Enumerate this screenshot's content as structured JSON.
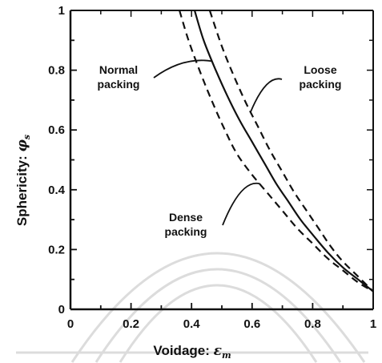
{
  "chart_data": {
    "type": "line",
    "title": "",
    "xlabel": "Voidage: ",
    "xlabel_symbol": "ε",
    "xlabel_sub": "m",
    "ylabel": "Sphericity: ",
    "ylabel_symbol": "φ",
    "ylabel_sub": "s",
    "xlim": [
      0,
      1
    ],
    "ylim": [
      0,
      1
    ],
    "x_ticks": [
      "0",
      "0.2",
      "0.4",
      "0.6",
      "0.8",
      "1"
    ],
    "y_ticks": [
      "0",
      "0.2",
      "0.4",
      "0.6",
      "0.8",
      "1"
    ],
    "grid": false,
    "series": [
      {
        "name": "Normal packing",
        "style": "solid",
        "x": [
          0.41,
          0.44,
          0.48,
          0.52,
          0.56,
          0.6,
          0.64,
          0.68,
          0.72,
          0.76,
          0.8,
          0.85,
          0.9,
          0.95,
          1.0
        ],
        "y": [
          1.0,
          0.9,
          0.8,
          0.71,
          0.63,
          0.56,
          0.49,
          0.42,
          0.36,
          0.3,
          0.25,
          0.19,
          0.14,
          0.1,
          0.06
        ]
      },
      {
        "name": "Loose packing",
        "style": "dashed",
        "x": [
          0.46,
          0.5,
          0.54,
          0.58,
          0.62,
          0.66,
          0.7,
          0.74,
          0.78,
          0.82,
          0.86,
          0.9,
          0.95,
          1.0
        ],
        "y": [
          1.0,
          0.88,
          0.78,
          0.69,
          0.61,
          0.53,
          0.46,
          0.39,
          0.33,
          0.27,
          0.21,
          0.16,
          0.11,
          0.06
        ]
      },
      {
        "name": "Dense packing",
        "style": "dashed",
        "x": [
          0.36,
          0.39,
          0.43,
          0.47,
          0.51,
          0.55,
          0.6,
          0.65,
          0.7,
          0.75,
          0.8,
          0.85,
          0.9,
          0.95,
          1.0
        ],
        "y": [
          1.0,
          0.9,
          0.79,
          0.69,
          0.6,
          0.52,
          0.45,
          0.39,
          0.33,
          0.27,
          0.22,
          0.17,
          0.13,
          0.09,
          0.06
        ]
      }
    ],
    "annotations": [
      {
        "lines": [
          "Normal",
          "packing"
        ],
        "series": "Normal packing"
      },
      {
        "lines": [
          "Loose",
          "packing"
        ],
        "series": "Loose packing"
      },
      {
        "lines": [
          "Dense",
          "packing"
        ],
        "series": "Dense packing"
      }
    ]
  }
}
